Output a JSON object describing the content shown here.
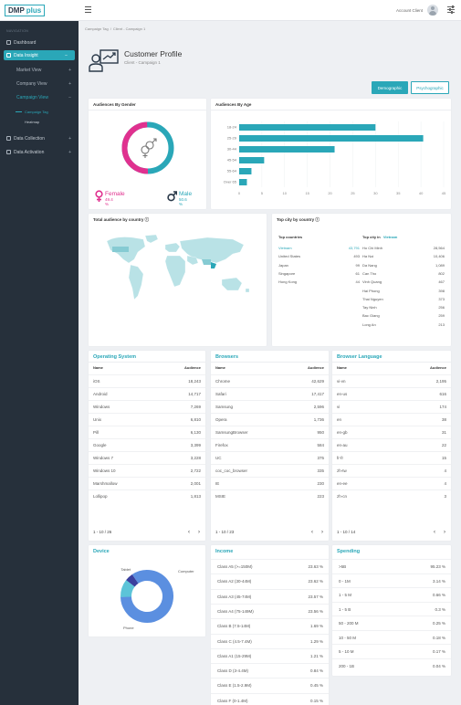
{
  "app": {
    "logo_part1": "DMP",
    "logo_part2": "plus"
  },
  "topbar": {
    "account_label": "Account Client"
  },
  "sidebar": {
    "heading": "NAVIGATION",
    "items": [
      {
        "label": "Dashboard",
        "expander": ""
      },
      {
        "label": "Data Insight",
        "expander": "−"
      },
      {
        "label": "Market View",
        "expander": "+"
      },
      {
        "label": "Company View",
        "expander": "+"
      },
      {
        "label": "Campaign View",
        "expander": "−"
      },
      {
        "label": "Campaign Tag",
        "expander": ""
      },
      {
        "label": "Heatmap",
        "expander": ""
      },
      {
        "label": "Data Collection",
        "expander": "+"
      },
      {
        "label": "Data Activation",
        "expander": "+"
      }
    ]
  },
  "breadcrumb": {
    "part1": "Campaign Tag",
    "part2": "Client - Campaign 1"
  },
  "profile": {
    "title": "Customer Profile",
    "subtitle": "Client - Campaign 1"
  },
  "tabs": {
    "demographic": "Demographic",
    "psychographic": "Psychographic"
  },
  "gender": {
    "title": "Audiences By Gender",
    "female_label": "Female",
    "female_pct": "49.4 %",
    "female_value": 49.4,
    "male_label": "Male",
    "male_pct": "50.6 %",
    "male_value": 50.6,
    "colors": {
      "female": "#e0318f",
      "male": "#2aa7b8"
    }
  },
  "age": {
    "title": "Audiences By Age",
    "chart_data": {
      "type": "bar",
      "orientation": "horizontal",
      "categories": [
        "18-24",
        "25-29",
        "30-44",
        "45-54",
        "55-64",
        "Over 65"
      ],
      "values": [
        30,
        40.5,
        21,
        5.5,
        2.7,
        1.7
      ],
      "xticks": [
        "0",
        "5",
        "10",
        "15",
        "20",
        "25",
        "30",
        "35",
        "40",
        "45"
      ],
      "xlim": [
        0,
        45
      ],
      "color": "#2aa7b8"
    }
  },
  "map": {
    "title": "Total audience by country ⓘ"
  },
  "city": {
    "title": "Top city by country ⓘ",
    "countries_header": "Top countries",
    "cities_header_prefix": "Top city in",
    "cities_header_country": "Vietnam",
    "countries": [
      {
        "name": "Vietnam",
        "value": "43,791"
      },
      {
        "name": "United States",
        "value": "493"
      },
      {
        "name": "Japan",
        "value": "99"
      },
      {
        "name": "Singapore",
        "value": "61"
      },
      {
        "name": "Hong Kong",
        "value": "44"
      }
    ],
    "cities": [
      {
        "name": "Ho Chi Minh",
        "value": "28,564"
      },
      {
        "name": "Ha Noi",
        "value": "10,406"
      },
      {
        "name": "Da Nang",
        "value": "1,089"
      },
      {
        "name": "Can Tho",
        "value": "802"
      },
      {
        "name": "Vinh Quang",
        "value": "467"
      },
      {
        "name": "Hai Phong",
        "value": "398"
      },
      {
        "name": "Thai Nguyen",
        "value": "373"
      },
      {
        "name": "Tay Ninh",
        "value": "256"
      },
      {
        "name": "Bac Giang",
        "value": "259"
      },
      {
        "name": "Long An",
        "value": "213"
      }
    ]
  },
  "os": {
    "title": "Operating System",
    "col_name": "Name",
    "col_aud": "Audience",
    "rows": [
      [
        "iOS",
        "18,243"
      ],
      [
        "Android",
        "14,717"
      ],
      [
        "Windows",
        "7,269"
      ],
      [
        "Unix",
        "6,810"
      ],
      [
        "Pill",
        "6,130"
      ],
      [
        "Google",
        "3,399"
      ],
      [
        "Windows 7",
        "3,228"
      ],
      [
        "Windows 10",
        "2,722"
      ],
      [
        "Marshmallow",
        "2,001"
      ],
      [
        "Lollipop",
        "1,813"
      ]
    ],
    "pager": "1 - 10 / 26"
  },
  "browsers": {
    "title": "Browsers",
    "col_name": "Name",
    "col_aud": "Audience",
    "rows": [
      [
        "Chrome",
        "42,629"
      ],
      [
        "Safari",
        "17,417"
      ],
      [
        "Samsung",
        "2,596"
      ],
      [
        "Opera",
        "1,736"
      ],
      [
        "SamsungBrowser",
        "950"
      ],
      [
        "Firefox",
        "584"
      ],
      [
        "UC",
        "375"
      ],
      [
        "coc_coc_browser",
        "335"
      ],
      [
        "IE",
        "230"
      ],
      [
        "MSIE",
        "223"
      ]
    ],
    "pager": "1 - 10 / 23"
  },
  "language": {
    "title": "Browser Language",
    "col_name": "Name",
    "col_aud": "Audience",
    "rows": [
      [
        "vi-vn",
        "2,195"
      ],
      [
        "en-us",
        "616"
      ],
      [
        "vi",
        "174"
      ],
      [
        "en",
        "38"
      ],
      [
        "en-gb",
        "31"
      ],
      [
        "en-au",
        "22"
      ],
      [
        "fr-fr",
        "15"
      ],
      [
        "zh-tw",
        "4"
      ],
      [
        "en-ee",
        "4"
      ],
      [
        "zh-cn",
        "3"
      ]
    ],
    "pager": "1 - 10 / 14"
  },
  "device": {
    "title": "Device",
    "chart_data": {
      "type": "pie",
      "labels": [
        "Phone",
        "Computer",
        "Tablet"
      ],
      "values": [
        84,
        11,
        5
      ],
      "colors": [
        "#5b8fe0",
        "#5cc4d8",
        "#3a3f9e"
      ]
    }
  },
  "income": {
    "title": "Income",
    "rows": [
      [
        "Class A5 (>=150M)",
        "23.63 %"
      ],
      [
        "Class A2 (30-44M)",
        "23.62 %"
      ],
      [
        "Class A3 (45-74M)",
        "23.57 %"
      ],
      [
        "Class A4 (75-149M)",
        "23.56 %"
      ],
      [
        "Class B (7.5-14M)",
        "1.69 %"
      ],
      [
        "Class C (4.5-7.4M)",
        "1.29 %"
      ],
      [
        "Class A1 (15-29M)",
        "1.21 %"
      ],
      [
        "Class D (3-4.4M)",
        "0.84 %"
      ],
      [
        "Class E (1.5-2.9M)",
        "0.45 %"
      ],
      [
        "Class F (0-1.4M)",
        "0.15 %"
      ]
    ]
  },
  "spending": {
    "title": "Spending",
    "rows": [
      [
        ">5B",
        "95.23 %"
      ],
      [
        "0 - 1M",
        "3.14 %"
      ],
      [
        "1 - 5 M",
        "0.66 %"
      ],
      [
        "1 - 5 B",
        "0.3 %"
      ],
      [
        "50 - 200 M",
        "0.25 %"
      ],
      [
        "10 - 50 M",
        "0.18 %"
      ],
      [
        "5 - 10 M",
        "0.17 %"
      ],
      [
        "200 - 1B",
        "0.04 %"
      ]
    ]
  }
}
